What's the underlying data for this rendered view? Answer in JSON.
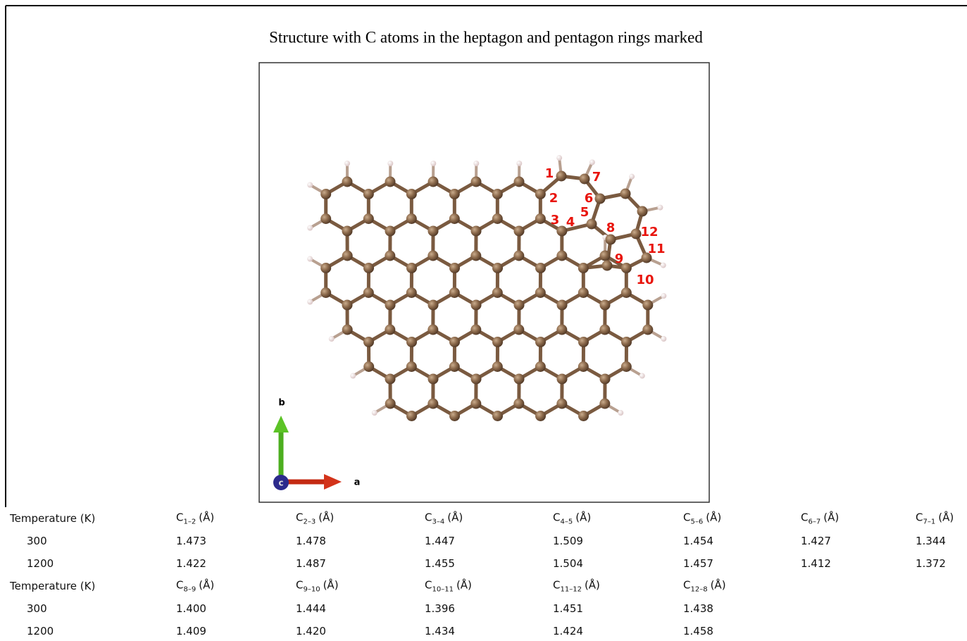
{
  "figure": {
    "title": "Structure with C atoms in the heptagon and pentagon rings marked",
    "atom_labels": [
      "1",
      "2",
      "3",
      "4",
      "5",
      "6",
      "7",
      "8",
      "9",
      "10",
      "11",
      "12"
    ],
    "axes": {
      "a": "a",
      "b": "b",
      "c": "c"
    }
  },
  "table": {
    "sections": [
      {
        "header": [
          "Temperature (K)",
          {
            "main": "C",
            "sub": "1–2",
            "unit": "(Å)"
          },
          {
            "main": "C",
            "sub": "2–3",
            "unit": "(Å)"
          },
          {
            "main": "C",
            "sub": "3–4",
            "unit": "(Å)"
          },
          {
            "main": "C",
            "sub": "4–5",
            "unit": "(Å)"
          },
          {
            "main": "C",
            "sub": "5–6",
            "unit": "(Å)"
          },
          {
            "main": "C",
            "sub": "6–7",
            "unit": "(Å)"
          },
          {
            "main": "C",
            "sub": "7–1",
            "unit": "(Å)"
          }
        ],
        "rows": [
          [
            "300",
            "1.473",
            "1.478",
            "1.447",
            "1.509",
            "1.454",
            "1.427",
            "1.344"
          ],
          [
            "1200",
            "1.422",
            "1.487",
            "1.455",
            "1.504",
            "1.457",
            "1.412",
            "1.372"
          ]
        ]
      },
      {
        "header": [
          "Temperature (K)",
          {
            "main": "C",
            "sub": "8–9",
            "unit": "(Å)"
          },
          {
            "main": "C",
            "sub": "9–10",
            "unit": "(Å)"
          },
          {
            "main": "C",
            "sub": "10–11",
            "unit": "(Å)"
          },
          {
            "main": "C",
            "sub": "11–12",
            "unit": "(Å)"
          },
          {
            "main": "C",
            "sub": "12–8",
            "unit": "(Å)"
          }
        ],
        "rows": [
          [
            "300",
            "1.400",
            "1.444",
            "1.396",
            "1.451",
            "1.438"
          ],
          [
            "1200",
            "1.409",
            "1.420",
            "1.434",
            "1.424",
            "1.458"
          ]
        ]
      }
    ]
  }
}
